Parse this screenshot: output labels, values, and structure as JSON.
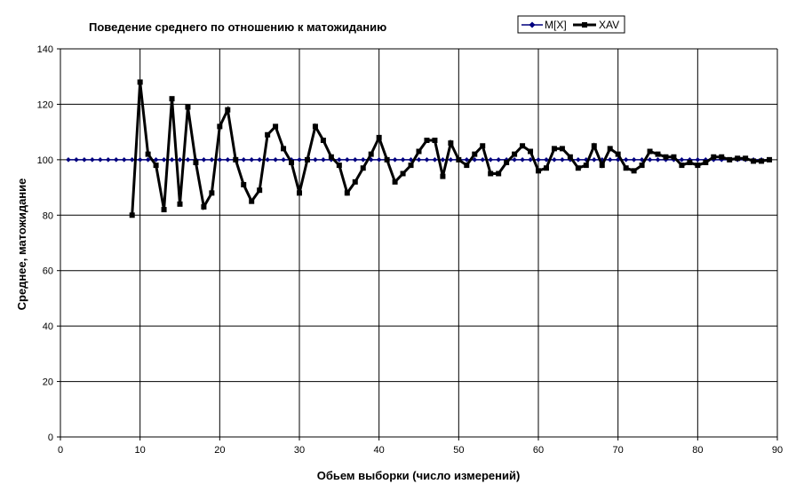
{
  "chart_data": {
    "type": "line",
    "title": "Поведение среднего по отношению к матожиданию",
    "xlabel": "Обьем выборки (число измерений)",
    "ylabel": "Среднее, матожидание",
    "xlim": [
      0,
      90
    ],
    "ylim": [
      0,
      140
    ],
    "xticks": [
      0,
      10,
      20,
      30,
      40,
      50,
      60,
      70,
      80,
      90
    ],
    "yticks": [
      0,
      20,
      40,
      60,
      80,
      100,
      120,
      140
    ],
    "grid": true,
    "legend_position": "top-right",
    "series": [
      {
        "name": "M[X]",
        "color": "#00007f",
        "marker": "diamond",
        "x": [
          1,
          2,
          3,
          4,
          5,
          6,
          7,
          8,
          9,
          10,
          11,
          12,
          13,
          14,
          15,
          16,
          17,
          18,
          19,
          20,
          21,
          22,
          23,
          24,
          25,
          26,
          27,
          28,
          29,
          30,
          31,
          32,
          33,
          34,
          35,
          36,
          37,
          38,
          39,
          40,
          41,
          42,
          43,
          44,
          45,
          46,
          47,
          48,
          49,
          50,
          51,
          52,
          53,
          54,
          55,
          56,
          57,
          58,
          59,
          60,
          61,
          62,
          63,
          64,
          65,
          66,
          67,
          68,
          69,
          70,
          71,
          72,
          73,
          74,
          75,
          76,
          77,
          78,
          79,
          80,
          81,
          82,
          83,
          84,
          85,
          86,
          87,
          88,
          89
        ],
        "y": [
          100,
          100,
          100,
          100,
          100,
          100,
          100,
          100,
          100,
          100,
          100,
          100,
          100,
          100,
          100,
          100,
          100,
          100,
          100,
          100,
          100,
          100,
          100,
          100,
          100,
          100,
          100,
          100,
          100,
          100,
          100,
          100,
          100,
          100,
          100,
          100,
          100,
          100,
          100,
          100,
          100,
          100,
          100,
          100,
          100,
          100,
          100,
          100,
          100,
          100,
          100,
          100,
          100,
          100,
          100,
          100,
          100,
          100,
          100,
          100,
          100,
          100,
          100,
          100,
          100,
          100,
          100,
          100,
          100,
          100,
          100,
          100,
          100,
          100,
          100,
          100,
          100,
          100,
          100,
          100,
          100,
          100,
          100,
          100,
          100,
          100,
          100,
          100,
          100
        ]
      },
      {
        "name": "XAV",
        "color": "#000000",
        "marker": "square",
        "x": [
          9,
          10,
          11,
          12,
          13,
          14,
          15,
          16,
          17,
          18,
          19,
          20,
          21,
          22,
          23,
          24,
          25,
          26,
          27,
          28,
          29,
          30,
          31,
          32,
          33,
          34,
          35,
          36,
          37,
          38,
          39,
          40,
          41,
          42,
          43,
          44,
          45,
          46,
          47,
          48,
          49,
          50,
          51,
          52,
          53,
          54,
          55,
          56,
          57,
          58,
          59,
          60,
          61,
          62,
          63,
          64,
          65,
          66,
          67,
          68,
          69,
          70,
          71,
          72,
          73,
          74,
          75,
          76,
          77,
          78,
          79,
          80,
          81,
          82,
          83,
          84,
          85,
          86,
          87,
          88,
          89
        ],
        "y": [
          80,
          128,
          102,
          98,
          82,
          122,
          84,
          119,
          99,
          83,
          88,
          112,
          118,
          100,
          91,
          85,
          89,
          109,
          112,
          104,
          99,
          88,
          100,
          112,
          107,
          101,
          98,
          88,
          92,
          97,
          102,
          108,
          100,
          92,
          95,
          98,
          103,
          107,
          107,
          94,
          106,
          100,
          98,
          102,
          105,
          95,
          95,
          99,
          102,
          105,
          103,
          96,
          97,
          104,
          104,
          101,
          97,
          98,
          105,
          98,
          104,
          102,
          97,
          96,
          98,
          103,
          102,
          101,
          101,
          98,
          99,
          98,
          99,
          101,
          101,
          100,
          100.5,
          100.5,
          99.5,
          99.5,
          100
        ]
      }
    ]
  }
}
